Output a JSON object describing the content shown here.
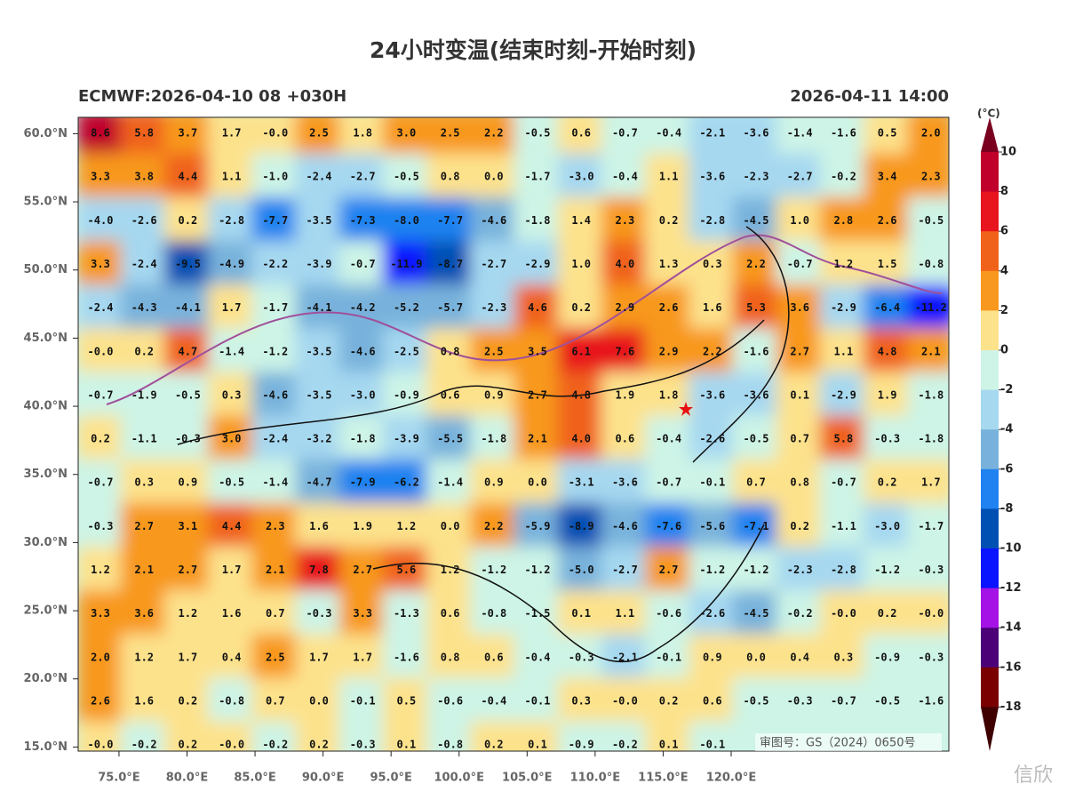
{
  "title": "24小时变温(结束时刻-开始时刻)",
  "subtitle_left": "ECMWF:2026-04-10 08 +030H",
  "subtitle_right": "2026-04-11 14:00",
  "map": {
    "xlim": [
      72,
      136
    ],
    "ylim": [
      14.7,
      61.2
    ],
    "xticks": [
      {
        "value": 75,
        "label": "75.0°E"
      },
      {
        "value": 80,
        "label": "80.0°E"
      },
      {
        "value": 85,
        "label": "85.0°E"
      },
      {
        "value": 90,
        "label": "90.0°E"
      },
      {
        "value": 95,
        "label": "95.0°E"
      },
      {
        "value": 100,
        "label": "100.0°E"
      },
      {
        "value": 105,
        "label": "105.0°E"
      },
      {
        "value": 110,
        "label": "110.0°E"
      },
      {
        "value": 115,
        "label": "115.0°E"
      },
      {
        "value": 120,
        "label": "120.0°E"
      }
    ],
    "yticks": [
      {
        "value": 60,
        "label": "60.0°N"
      },
      {
        "value": 55,
        "label": "55.0°N"
      },
      {
        "value": 50,
        "label": "50.0°N"
      },
      {
        "value": 45,
        "label": "45.0°N"
      },
      {
        "value": 40,
        "label": "40.0°N"
      },
      {
        "value": 35,
        "label": "35.0°N"
      },
      {
        "value": 30,
        "label": "30.0°N"
      },
      {
        "value": 25,
        "label": "25.0°N"
      },
      {
        "value": 20,
        "label": "20.0°N"
      },
      {
        "value": 15,
        "label": "15.0°N"
      }
    ],
    "grid_values": [
      [
        "8.6",
        "5.8",
        "3.7",
        "1.7",
        "-0.0",
        "2.5",
        "1.8",
        "3.0",
        "2.5",
        "2.2",
        "-0.5",
        "0.6",
        "-0.7",
        "-0.4",
        "-2.1",
        "-3.6",
        "-1.4",
        "-1.6",
        "0.5",
        "2.0"
      ],
      [
        "3.3",
        "3.8",
        "4.4",
        "1.1",
        "-1.0",
        "-2.4",
        "-2.7",
        "-0.5",
        "0.8",
        "0.0",
        "-1.7",
        "-3.0",
        "-0.4",
        "1.1",
        "-3.6",
        "-2.3",
        "-2.7",
        "-0.2",
        "3.4",
        "2.3"
      ],
      [
        "-4.0",
        "-2.6",
        "0.2",
        "-2.8",
        "-7.7",
        "-3.5",
        "-7.3",
        "-8.0",
        "-7.7",
        "-4.6",
        "-1.8",
        "1.4",
        "2.3",
        "0.2",
        "-2.8",
        "-4.5",
        "1.0",
        "2.8",
        "2.6",
        "-0.5"
      ],
      [
        "3.3",
        "-2.4",
        "-9.5",
        "-4.9",
        "-2.2",
        "-3.9",
        "-0.7",
        "-11.9",
        "-8.7",
        "-2.7",
        "-2.9",
        "1.0",
        "4.0",
        "1.3",
        "0.3",
        "2.2",
        "-0.7",
        "1.2",
        "1.5",
        "-0.8"
      ],
      [
        "-2.4",
        "-4.3",
        "-4.1",
        "1.7",
        "-1.7",
        "-4.1",
        "-4.2",
        "-5.2",
        "-5.7",
        "-2.3",
        "4.6",
        "0.2",
        "2.9",
        "2.6",
        "1.6",
        "5.3",
        "3.6",
        "-2.9",
        "-6.4",
        "-11.2"
      ],
      [
        "-0.0",
        "0.2",
        "4.7",
        "-1.4",
        "-1.2",
        "-3.5",
        "-4.6",
        "-2.5",
        "0.8",
        "2.5",
        "3.5",
        "6.1",
        "7.6",
        "2.9",
        "2.2",
        "-1.6",
        "2.7",
        "1.1",
        "4.8",
        "2.1"
      ],
      [
        "-0.7",
        "-1.9",
        "-0.5",
        "0.3",
        "-4.6",
        "-3.5",
        "-3.0",
        "-0.9",
        "0.6",
        "0.9",
        "2.7",
        "4.8",
        "1.9",
        "1.8",
        "-3.6",
        "-3.6",
        "0.1",
        "-2.9",
        "1.9",
        "-1.8"
      ],
      [
        "0.2",
        "-1.1",
        "-0.3",
        "3.0",
        "-2.4",
        "-3.2",
        "-1.8",
        "-3.9",
        "-5.5",
        "-1.8",
        "2.1",
        "4.0",
        "0.6",
        "-0.4",
        "-2.6",
        "-0.5",
        "0.7",
        "5.8",
        "-0.3",
        "-1.8"
      ],
      [
        "-0.7",
        "0.3",
        "0.9",
        "-0.5",
        "-1.4",
        "-4.7",
        "-7.9",
        "-6.2",
        "-1.4",
        "0.9",
        "0.0",
        "-3.1",
        "-3.6",
        "-0.7",
        "-0.1",
        "0.7",
        "0.8",
        "-0.7",
        "0.2",
        "1.7"
      ],
      [
        "-0.3",
        "2.7",
        "3.1",
        "4.4",
        "2.3",
        "1.6",
        "1.9",
        "1.2",
        "0.0",
        "2.2",
        "-5.9",
        "-8.9",
        "-4.6",
        "-7.6",
        "-5.6",
        "-7.1",
        "0.2",
        "-1.1",
        "-3.0",
        "-1.7"
      ],
      [
        "1.2",
        "2.1",
        "2.7",
        "1.7",
        "2.1",
        "7.8",
        "2.7",
        "5.6",
        "1.2",
        "-1.2",
        "-1.2",
        "-5.0",
        "-2.7",
        "2.7",
        "-1.2",
        "-1.2",
        "-2.3",
        "-2.8",
        "-1.2",
        "-0.3"
      ],
      [
        "3.3",
        "3.6",
        "1.2",
        "1.6",
        "0.7",
        "-0.3",
        "3.3",
        "-1.3",
        "0.6",
        "-0.8",
        "-1.5",
        "0.1",
        "1.1",
        "-0.6",
        "-2.6",
        "-4.5",
        "-0.2",
        "-0.0",
        "0.2",
        "-0.0"
      ],
      [
        "2.0",
        "1.2",
        "1.7",
        "0.4",
        "2.5",
        "1.7",
        "1.7",
        "-1.6",
        "0.8",
        "0.6",
        "-0.4",
        "-0.3",
        "-2.1",
        "-0.1",
        "0.9",
        "0.0",
        "0.4",
        "0.3",
        "-0.9",
        "-0.3"
      ],
      [
        "2.6",
        "1.6",
        "0.2",
        "-0.8",
        "0.7",
        "0.0",
        "-0.1",
        "0.5",
        "-0.6",
        "-0.4",
        "-0.1",
        "0.3",
        "-0.0",
        "0.2",
        "0.6",
        "-0.5",
        "-0.3",
        "-0.7",
        "-0.5",
        "-1.6"
      ],
      [
        "-0.0",
        "-0.2",
        "0.2",
        "-0.0",
        "-0.2",
        "0.2",
        "-0.3",
        "0.1",
        "-0.8",
        "0.2",
        "0.1",
        "-0.9",
        "-0.2",
        "0.1",
        "-0.1"
      ]
    ]
  },
  "colorbar": {
    "unit": "(°C)",
    "levels": [
      10,
      8,
      6,
      4,
      2,
      0,
      -2,
      -4,
      -6,
      -8,
      -10,
      -12,
      -14,
      -16,
      -18
    ],
    "colors": [
      "#7a0020",
      "#c0002a",
      "#e8141e",
      "#f0621a",
      "#f8981e",
      "#fde28c",
      "#cdf4e6",
      "#a6d8f0",
      "#78b2dc",
      "#1f82f0",
      "#0050b4",
      "#0a14ff",
      "#a412e6",
      "#4c0078",
      "#7a0000",
      "#3f0000"
    ]
  },
  "approval": "审图号：GS（2024）0650号",
  "watermark": "信欣"
}
